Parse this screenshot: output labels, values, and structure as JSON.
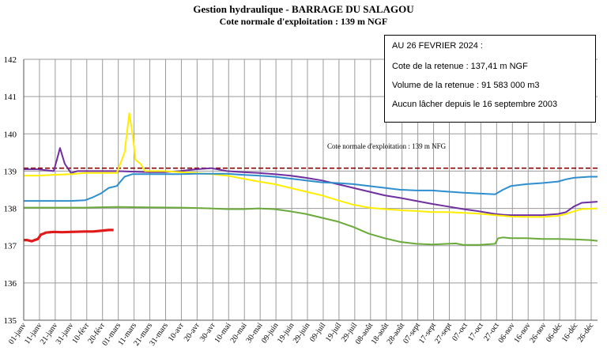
{
  "chart_data": {
    "type": "line",
    "title": "Gestion hydraulique - BARRAGE DU SALAGOU",
    "subtitle": "Cote normale d'exploitation : 139 m NGF",
    "xlabel": "",
    "ylabel": "",
    "ylim": [
      135,
      142
    ],
    "yticks": [
      135,
      136,
      137,
      138,
      139,
      140,
      141,
      142
    ],
    "x_categories": [
      "01-janv",
      "11-janv",
      "21-janv",
      "31-janv",
      "10-févr",
      "20-févr",
      "01-mars",
      "11-mars",
      "21-mars",
      "31-mars",
      "10-avr",
      "20-avr",
      "30-avr",
      "10-mai",
      "20-mai",
      "30-mai",
      "09-juin",
      "19-juin",
      "29-juin",
      "09-juil",
      "19-juil",
      "29-juil",
      "08-août",
      "18-août",
      "28-août",
      "07-sept",
      "17-sept",
      "27-sept",
      "07-oct",
      "17-oct",
      "27-oct",
      "06-nov",
      "16-nov",
      "26-nov",
      "06-déc",
      "16-déc",
      "26-déc"
    ],
    "x_label_format": "day-of-year",
    "grid": true,
    "reference_line": {
      "value": 139.08,
      "label": "Cote normale d'exploitation : 139 m NFG",
      "color": "#8b0000"
    },
    "series": [
      {
        "color": "#6f2fa0",
        "x": [
          1,
          10,
          20,
          22,
          24,
          27,
          31,
          35,
          45,
          60,
          80,
          90,
          100,
          110,
          120,
          130,
          140,
          150,
          160,
          170,
          180,
          190,
          200,
          210,
          220,
          230,
          240,
          250,
          260,
          270,
          280,
          290,
          300,
          305,
          310,
          320,
          330,
          340,
          345,
          350,
          355,
          365
        ],
        "y": [
          139.05,
          139.05,
          139.0,
          139.3,
          139.62,
          139.2,
          138.95,
          139.0,
          139.0,
          139.0,
          138.97,
          138.97,
          139.0,
          139.05,
          139.08,
          139.0,
          138.97,
          138.95,
          138.92,
          138.88,
          138.82,
          138.75,
          138.65,
          138.55,
          138.45,
          138.35,
          138.28,
          138.2,
          138.12,
          138.05,
          137.98,
          137.92,
          137.85,
          137.83,
          137.82,
          137.82,
          137.82,
          137.85,
          137.9,
          138.05,
          138.15,
          138.18
        ]
      },
      {
        "color": "#ffee00",
        "x": [
          1,
          10,
          20,
          31,
          40,
          50,
          60,
          65,
          68,
          70,
          72,
          75,
          78,
          80,
          90,
          100,
          110,
          120,
          130,
          140,
          150,
          160,
          170,
          180,
          190,
          200,
          210,
          220,
          230,
          240,
          250,
          260,
          270,
          280,
          290,
          300,
          310,
          320,
          330,
          340,
          345,
          350,
          355,
          365
        ],
        "y": [
          138.88,
          138.88,
          138.9,
          138.92,
          138.95,
          138.95,
          138.95,
          139.5,
          140.55,
          140.0,
          139.3,
          139.2,
          139.0,
          139.0,
          139.0,
          138.97,
          138.95,
          138.92,
          138.88,
          138.8,
          138.72,
          138.65,
          138.55,
          138.45,
          138.35,
          138.22,
          138.1,
          138.02,
          137.98,
          137.95,
          137.93,
          137.9,
          137.9,
          137.88,
          137.86,
          137.82,
          137.78,
          137.77,
          137.77,
          137.8,
          137.85,
          137.92,
          137.98,
          138.0
        ]
      },
      {
        "color": "#2e8ece",
        "x": [
          1,
          10,
          20,
          31,
          40,
          45,
          50,
          55,
          60,
          65,
          70,
          80,
          90,
          100,
          110,
          120,
          130,
          140,
          150,
          160,
          170,
          180,
          190,
          200,
          210,
          220,
          230,
          240,
          250,
          260,
          270,
          280,
          290,
          300,
          305,
          310,
          320,
          330,
          340,
          345,
          350,
          360,
          365
        ],
        "y": [
          138.2,
          138.2,
          138.2,
          138.2,
          138.22,
          138.3,
          138.4,
          138.55,
          138.6,
          138.85,
          138.92,
          138.92,
          138.92,
          138.92,
          138.93,
          138.93,
          138.93,
          138.9,
          138.88,
          138.85,
          138.8,
          138.75,
          138.7,
          138.68,
          138.65,
          138.6,
          138.55,
          138.5,
          138.48,
          138.48,
          138.45,
          138.42,
          138.4,
          138.38,
          138.5,
          138.6,
          138.65,
          138.68,
          138.72,
          138.78,
          138.82,
          138.85,
          138.85
        ]
      },
      {
        "color": "#6aaa3a",
        "x": [
          1,
          20,
          40,
          60,
          80,
          100,
          120,
          130,
          140,
          150,
          160,
          170,
          180,
          190,
          200,
          210,
          220,
          230,
          240,
          250,
          260,
          270,
          275,
          280,
          290,
          300,
          302,
          305,
          310,
          320,
          330,
          340,
          350,
          360,
          365
        ],
        "y": [
          138.02,
          138.02,
          138.02,
          138.04,
          138.03,
          138.02,
          138.0,
          137.98,
          137.98,
          138.0,
          137.98,
          137.92,
          137.85,
          137.75,
          137.65,
          137.5,
          137.32,
          137.2,
          137.1,
          137.05,
          137.03,
          137.05,
          137.06,
          137.02,
          137.02,
          137.05,
          137.2,
          137.22,
          137.2,
          137.2,
          137.18,
          137.18,
          137.17,
          137.15,
          137.13
        ]
      },
      {
        "color": "#e01a1a",
        "x": [
          1,
          3,
          6,
          8,
          10,
          12,
          14,
          15,
          20,
          25,
          31,
          40,
          45,
          50,
          55,
          58
        ],
        "y": [
          137.15,
          137.15,
          137.12,
          137.15,
          137.18,
          137.3,
          137.33,
          137.35,
          137.37,
          137.36,
          137.37,
          137.38,
          137.38,
          137.4,
          137.42,
          137.42
        ]
      }
    ]
  },
  "infobox": {
    "date_line": "AU 26 FEVRIER 2024 :",
    "cote_line": "Cote de la retenue : 137,41 m NGF",
    "volume_line": "Volume de la retenue : 91 583 000 m3",
    "lacher_line": "Aucun lâcher depuis le 16 septembre 2003"
  }
}
